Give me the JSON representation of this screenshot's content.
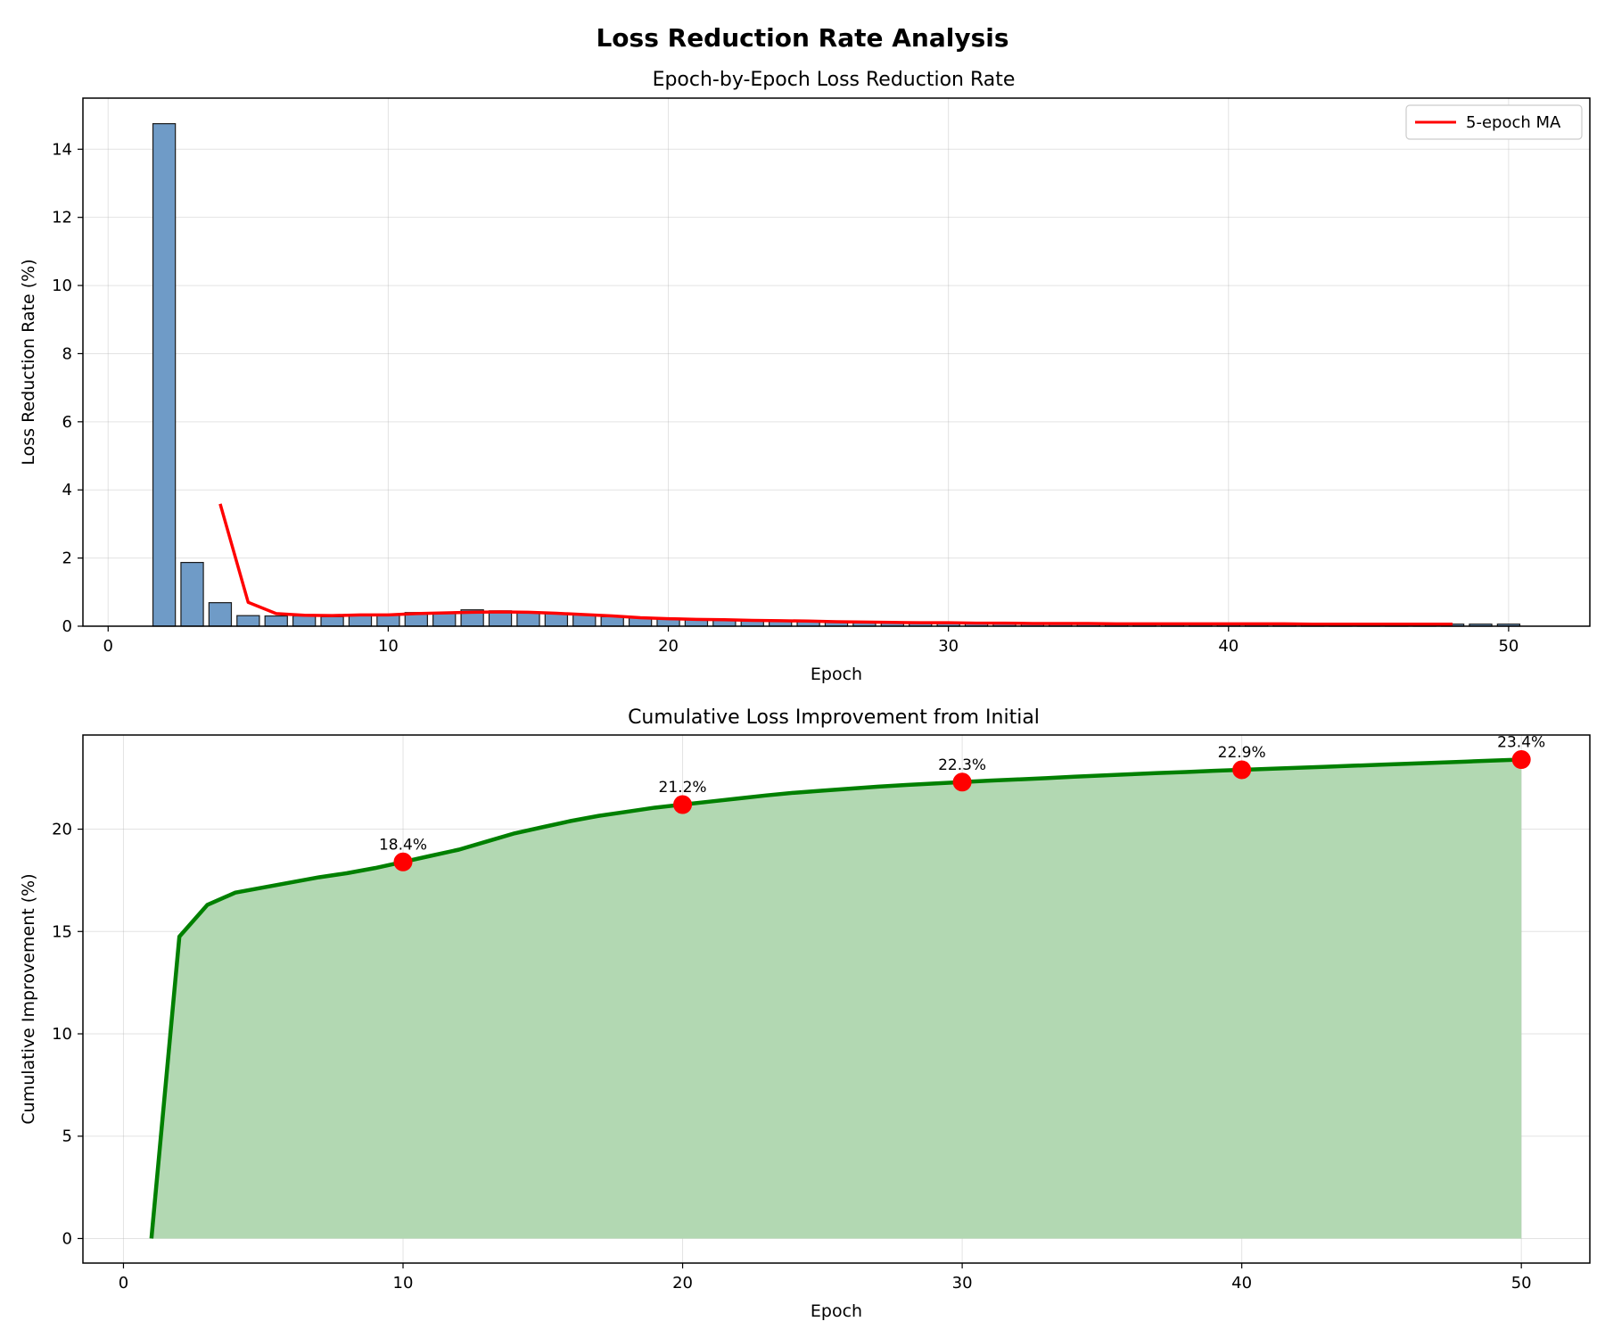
{
  "figure": {
    "title": "Loss Reduction Rate Analysis"
  },
  "chart_data": [
    {
      "type": "bar",
      "title": "Epoch-by-Epoch Loss Reduction Rate",
      "xlabel": "Epoch",
      "ylabel": "Loss Reduction Rate (%)",
      "xlim": [
        -0.9,
        52.9
      ],
      "ylim": [
        0,
        15.5
      ],
      "xticks": [
        0,
        10,
        20,
        30,
        40,
        50
      ],
      "yticks": [
        0,
        2,
        4,
        6,
        8,
        10,
        12,
        14
      ],
      "grid": true,
      "legend": {
        "position": "top-right",
        "entries": [
          "5-epoch MA"
        ]
      },
      "bars": {
        "x": [
          2,
          3,
          4,
          5,
          6,
          7,
          8,
          9,
          10,
          11,
          12,
          13,
          14,
          15,
          16,
          17,
          18,
          19,
          20,
          21,
          22,
          23,
          24,
          25,
          26,
          27,
          28,
          29,
          30,
          31,
          32,
          33,
          34,
          35,
          36,
          37,
          38,
          39,
          40,
          41,
          42,
          43,
          44,
          45,
          46,
          47,
          48,
          49,
          50
        ],
        "values": [
          14.75,
          1.87,
          0.69,
          0.31,
          0.3,
          0.3,
          0.28,
          0.33,
          0.32,
          0.4,
          0.4,
          0.48,
          0.45,
          0.42,
          0.38,
          0.33,
          0.28,
          0.24,
          0.22,
          0.2,
          0.19,
          0.17,
          0.16,
          0.15,
          0.13,
          0.12,
          0.11,
          0.1,
          0.1,
          0.09,
          0.09,
          0.08,
          0.08,
          0.08,
          0.07,
          0.07,
          0.07,
          0.07,
          0.07,
          0.07,
          0.06,
          0.06,
          0.06,
          0.06,
          0.06,
          0.06,
          0.06,
          0.06,
          0.06
        ],
        "color": "#6f9bc7"
      },
      "series": [
        {
          "name": "5-epoch MA",
          "color": "#ff0000",
          "x": [
            4,
            5,
            6,
            7,
            8,
            9,
            10,
            11,
            12,
            13,
            14,
            15,
            16,
            17,
            18,
            19,
            20,
            21,
            22,
            23,
            24,
            25,
            26,
            27,
            28,
            29,
            30,
            31,
            32,
            33,
            34,
            35,
            36,
            37,
            38,
            39,
            40,
            41,
            42,
            43,
            44,
            45,
            46,
            47,
            48
          ],
          "values": [
            3.59,
            0.7,
            0.37,
            0.32,
            0.31,
            0.33,
            0.33,
            0.37,
            0.39,
            0.41,
            0.42,
            0.41,
            0.38,
            0.34,
            0.3,
            0.25,
            0.22,
            0.2,
            0.19,
            0.17,
            0.16,
            0.15,
            0.13,
            0.12,
            0.11,
            0.1,
            0.1,
            0.09,
            0.09,
            0.08,
            0.08,
            0.08,
            0.07,
            0.07,
            0.07,
            0.07,
            0.07,
            0.07,
            0.07,
            0.06,
            0.06,
            0.06,
            0.06,
            0.06,
            0.06
          ]
        }
      ]
    },
    {
      "type": "area",
      "title": "Cumulative Loss Improvement from Initial",
      "xlabel": "Epoch",
      "ylabel": "Cumulative Improvement (%)",
      "xlim": [
        -1.45,
        52.45
      ],
      "ylim": [
        -1.2,
        24.6
      ],
      "xticks": [
        0,
        10,
        20,
        30,
        40,
        50
      ],
      "yticks": [
        0,
        5,
        10,
        15,
        20
      ],
      "grid": true,
      "series": [
        {
          "color": "#008000",
          "fill": "#b2d8b2",
          "x": [
            1,
            2,
            3,
            4,
            5,
            6,
            7,
            8,
            9,
            10,
            11,
            12,
            13,
            14,
            15,
            16,
            17,
            18,
            19,
            20,
            21,
            22,
            23,
            24,
            25,
            26,
            27,
            28,
            29,
            30,
            31,
            32,
            33,
            34,
            35,
            36,
            37,
            38,
            39,
            40,
            41,
            42,
            43,
            44,
            45,
            46,
            47,
            48,
            49,
            50
          ],
          "values": [
            0,
            14.75,
            16.3,
            16.9,
            17.15,
            17.4,
            17.65,
            17.85,
            18.1,
            18.4,
            18.7,
            19.0,
            19.4,
            19.8,
            20.1,
            20.4,
            20.65,
            20.85,
            21.05,
            21.2,
            21.35,
            21.5,
            21.65,
            21.78,
            21.88,
            21.98,
            22.08,
            22.16,
            22.23,
            22.3,
            22.37,
            22.43,
            22.49,
            22.56,
            22.62,
            22.68,
            22.74,
            22.79,
            22.85,
            22.9,
            22.95,
            23.0,
            23.05,
            23.1,
            23.15,
            23.2,
            23.25,
            23.3,
            23.35,
            23.4
          ]
        }
      ],
      "markers": {
        "color": "#ff0000",
        "x": [
          10,
          20,
          30,
          40,
          50
        ],
        "values": [
          18.4,
          21.2,
          22.3,
          22.9,
          23.4
        ],
        "labels": [
          "18.4%",
          "21.2%",
          "22.3%",
          "22.9%",
          "23.4%"
        ]
      }
    }
  ]
}
